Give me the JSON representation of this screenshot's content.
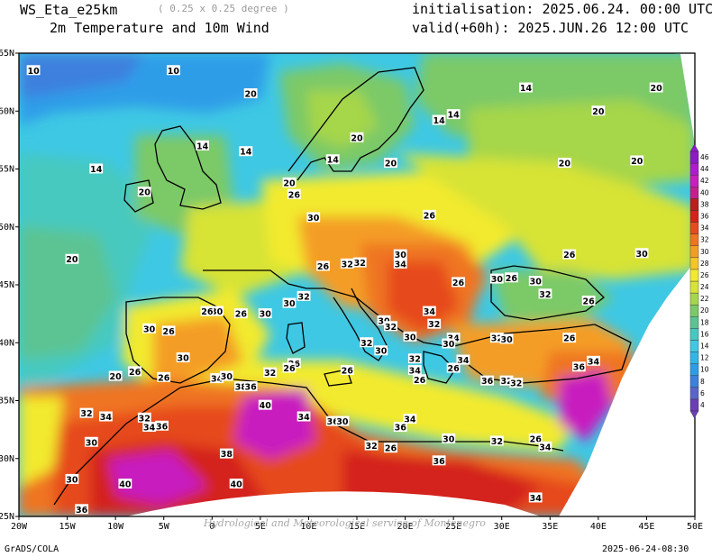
{
  "header": {
    "model": "WS_Eta_e25km",
    "resolution": "( 0.25 x 0.25 degree )",
    "field": "2m Temperature and 10m Wind",
    "initialisation": "initialisation: 2025.06.24. 00:00 UTC",
    "valid": "valid(+60h): 2025.JUN.26 12:00 UTC"
  },
  "footer": {
    "credit": "GrADS/COLA",
    "timestamp": "2025-06-24-08:30",
    "watermark": "Hydrological and Meteorological service of Montenegro"
  },
  "axes": {
    "lon_labels": [
      "20W",
      "15W",
      "10W",
      "5W",
      "0",
      "5E",
      "10E",
      "15E",
      "20E",
      "25E",
      "30E",
      "35E",
      "40E",
      "45E",
      "50E"
    ],
    "lat_labels": [
      "25N",
      "30N",
      "35N",
      "40N",
      "45N",
      "50N",
      "55N",
      "60N",
      "65N"
    ]
  },
  "colorbar": {
    "levels": [
      "4",
      "6",
      "8",
      "10",
      "12",
      "14",
      "16",
      "18",
      "20",
      "22",
      "24",
      "26",
      "28",
      "30",
      "32",
      "34",
      "36",
      "38",
      "40",
      "42",
      "44",
      "46"
    ],
    "colors": [
      "#6a3fb6",
      "#5a64cc",
      "#3d80de",
      "#2d9de8",
      "#30b7ea",
      "#3ec8e4",
      "#46c9c0",
      "#5cc493",
      "#7cc968",
      "#a6d64a",
      "#d7e336",
      "#f2ea2e",
      "#f6c52a",
      "#f49d26",
      "#ef7422",
      "#e64a1f",
      "#d4221d",
      "#b81f1e",
      "#c4208c",
      "#c81fbf",
      "#b01bd0",
      "#8d1ac8"
    ]
  },
  "contour_labels": [
    {
      "text": "10",
      "lon": -18.5,
      "lat": 63.5
    },
    {
      "text": "10",
      "lon": -4,
      "lat": 63.5
    },
    {
      "text": "20",
      "lon": 4,
      "lat": 61.5
    },
    {
      "text": "14",
      "lon": 3.5,
      "lat": 56.5
    },
    {
      "text": "14",
      "lon": -1,
      "lat": 57
    },
    {
      "text": "14",
      "lon": -12,
      "lat": 55
    },
    {
      "text": "20",
      "lon": -7,
      "lat": 53
    },
    {
      "text": "20",
      "lon": -14.5,
      "lat": 47.2
    },
    {
      "text": "20",
      "lon": 8,
      "lat": 53.8
    },
    {
      "text": "14",
      "lon": 12.5,
      "lat": 55.8
    },
    {
      "text": "20",
      "lon": 15,
      "lat": 57.7
    },
    {
      "text": "20",
      "lon": 18.5,
      "lat": 55.5
    },
    {
      "text": "14",
      "lon": 23.5,
      "lat": 59.2
    },
    {
      "text": "14",
      "lon": 25,
      "lat": 59.7
    },
    {
      "text": "14",
      "lon": 32.5,
      "lat": 62
    },
    {
      "text": "20",
      "lon": 40,
      "lat": 60
    },
    {
      "text": "20",
      "lon": 46,
      "lat": 62
    },
    {
      "text": "20",
      "lon": 36.5,
      "lat": 55.5
    },
    {
      "text": "20",
      "lon": 44,
      "lat": 55.7
    },
    {
      "text": "26",
      "lon": 8.5,
      "lat": 52.8
    },
    {
      "text": "30",
      "lon": 10.5,
      "lat": 50.8
    },
    {
      "text": "26",
      "lon": 22.5,
      "lat": 51
    },
    {
      "text": "30",
      "lon": 19.5,
      "lat": 47.6
    },
    {
      "text": "34",
      "lon": 19.5,
      "lat": 46.8
    },
    {
      "text": "26",
      "lon": 11.5,
      "lat": 46.6
    },
    {
      "text": "32",
      "lon": 14,
      "lat": 46.8
    },
    {
      "text": "32",
      "lon": 15.3,
      "lat": 46.9
    },
    {
      "text": "26",
      "lon": 25.5,
      "lat": 45.2
    },
    {
      "text": "30",
      "lon": 29.5,
      "lat": 45.5
    },
    {
      "text": "26",
      "lon": 31,
      "lat": 45.6
    },
    {
      "text": "30",
      "lon": 33.5,
      "lat": 45.3
    },
    {
      "text": "26",
      "lon": 37,
      "lat": 47.6
    },
    {
      "text": "30",
      "lon": 44.5,
      "lat": 47.7
    },
    {
      "text": "32",
      "lon": 34.5,
      "lat": 44.2
    },
    {
      "text": "26",
      "lon": 39,
      "lat": 43.6
    },
    {
      "text": "32",
      "lon": 9.5,
      "lat": 44
    },
    {
      "text": "30",
      "lon": 8,
      "lat": 43.4
    },
    {
      "text": "34",
      "lon": 22.5,
      "lat": 42.7
    },
    {
      "text": "30",
      "lon": 17.8,
      "lat": 41.9
    },
    {
      "text": "32",
      "lon": 18.5,
      "lat": 41.4
    },
    {
      "text": "30",
      "lon": 20.5,
      "lat": 40.5
    },
    {
      "text": "32",
      "lon": 23,
      "lat": 41.6
    },
    {
      "text": "34",
      "lon": 25,
      "lat": 40.4
    },
    {
      "text": "30",
      "lon": 24.5,
      "lat": 39.9
    },
    {
      "text": "32",
      "lon": 29.5,
      "lat": 40.4
    },
    {
      "text": "30",
      "lon": 30.5,
      "lat": 40.3
    },
    {
      "text": "26",
      "lon": 37,
      "lat": 40.4
    },
    {
      "text": "30",
      "lon": 5.5,
      "lat": 42.5
    },
    {
      "text": "26",
      "lon": 3,
      "lat": 42.5
    },
    {
      "text": "30",
      "lon": 0.5,
      "lat": 42.7
    },
    {
      "text": "26",
      "lon": -0.5,
      "lat": 42.7
    },
    {
      "text": "26",
      "lon": -4.5,
      "lat": 41
    },
    {
      "text": "30",
      "lon": -6.5,
      "lat": 41.2
    },
    {
      "text": "30",
      "lon": -3,
      "lat": 38.7
    },
    {
      "text": "26",
      "lon": -8,
      "lat": 37.5
    },
    {
      "text": "20",
      "lon": -10,
      "lat": 37.1
    },
    {
      "text": "26",
      "lon": -5,
      "lat": 37
    },
    {
      "text": "32",
      "lon": 16,
      "lat": 40
    },
    {
      "text": "30",
      "lon": 17.5,
      "lat": 39.3
    },
    {
      "text": "26",
      "lon": 8.5,
      "lat": 38.2
    },
    {
      "text": "26",
      "lon": 14,
      "lat": 37.6
    },
    {
      "text": "32",
      "lon": 21,
      "lat": 38.6
    },
    {
      "text": "34",
      "lon": 21,
      "lat": 37.6
    },
    {
      "text": "26",
      "lon": 21.5,
      "lat": 36.8
    },
    {
      "text": "34",
      "lon": 26,
      "lat": 38.5
    },
    {
      "text": "26",
      "lon": 25,
      "lat": 37.8
    },
    {
      "text": "36",
      "lon": 28.5,
      "lat": 36.7
    },
    {
      "text": "32",
      "lon": 30.5,
      "lat": 36.7
    },
    {
      "text": "32",
      "lon": 31.5,
      "lat": 36.5
    },
    {
      "text": "36",
      "lon": 38,
      "lat": 37.9
    },
    {
      "text": "34",
      "lon": 39.5,
      "lat": 38.4
    },
    {
      "text": "34",
      "lon": 0.5,
      "lat": 36.9
    },
    {
      "text": "30",
      "lon": 1.5,
      "lat": 37.1
    },
    {
      "text": "32",
      "lon": 6,
      "lat": 37.4
    },
    {
      "text": "26",
      "lon": 8,
      "lat": 37.8
    },
    {
      "text": "38",
      "lon": 3,
      "lat": 36.2
    },
    {
      "text": "36",
      "lon": 4,
      "lat": 36.2
    },
    {
      "text": "40",
      "lon": 5.5,
      "lat": 34.6
    },
    {
      "text": "34",
      "lon": 9.5,
      "lat": 33.6
    },
    {
      "text": "36",
      "lon": 12.5,
      "lat": 33.2
    },
    {
      "text": "30",
      "lon": 13.5,
      "lat": 33.2
    },
    {
      "text": "34",
      "lon": 20.5,
      "lat": 33.4
    },
    {
      "text": "36",
      "lon": 19.5,
      "lat": 32.7
    },
    {
      "text": "30",
      "lon": 24.5,
      "lat": 31.7
    },
    {
      "text": "32",
      "lon": 29.5,
      "lat": 31.5
    },
    {
      "text": "26",
      "lon": 33.5,
      "lat": 31.7
    },
    {
      "text": "34",
      "lon": 34.5,
      "lat": 31
    },
    {
      "text": "32",
      "lon": 16.5,
      "lat": 31.1
    },
    {
      "text": "26",
      "lon": 18.5,
      "lat": 30.9
    },
    {
      "text": "36",
      "lon": 23.5,
      "lat": 29.8
    },
    {
      "text": "34",
      "lon": 33.5,
      "lat": 26.6
    },
    {
      "text": "32",
      "lon": -13,
      "lat": 33.9
    },
    {
      "text": "34",
      "lon": -11,
      "lat": 33.6
    },
    {
      "text": "32",
      "lon": -7,
      "lat": 33.5
    },
    {
      "text": "34",
      "lon": -6.5,
      "lat": 32.7
    },
    {
      "text": "36",
      "lon": -5.2,
      "lat": 32.8
    },
    {
      "text": "30",
      "lon": -12.5,
      "lat": 31.4
    },
    {
      "text": "38",
      "lon": 1.5,
      "lat": 30.4
    },
    {
      "text": "30",
      "lon": -14.5,
      "lat": 28.2
    },
    {
      "text": "40",
      "lon": -9,
      "lat": 27.8
    },
    {
      "text": "40",
      "lon": 2.5,
      "lat": 27.8
    },
    {
      "text": "36",
      "lon": -13.5,
      "lat": 25.6
    }
  ]
}
